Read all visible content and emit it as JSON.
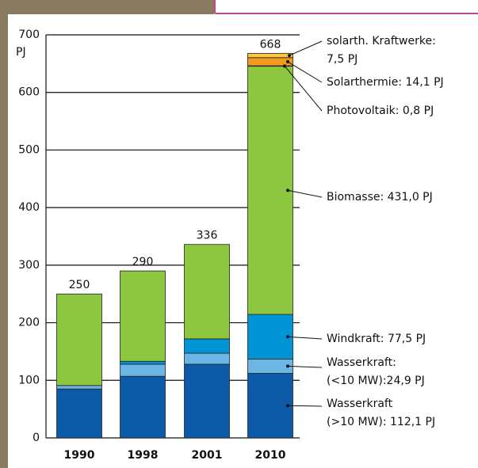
{
  "chart_data": {
    "type": "stacked-bar",
    "y_label": "PJ",
    "categories": [
      "1990",
      "1998",
      "2001",
      "2010"
    ],
    "totals": [
      250,
      290,
      336,
      668
    ],
    "ylim": [
      0,
      700
    ],
    "yticks": [
      0,
      100,
      200,
      300,
      400,
      500,
      600,
      700
    ],
    "grid": true,
    "series": [
      {
        "label": [
          "Wasserkraft",
          "(>10 MW): 112,1 PJ"
        ],
        "color": "#0b5ba8",
        "values": [
          85,
          107,
          128,
          112.1
        ]
      },
      {
        "label": [
          "Wasserkraft:",
          "(<10 MW):24,9 PJ"
        ],
        "color": "#6cb6e6",
        "values": [
          6,
          21,
          19,
          24.9
        ]
      },
      {
        "label": [
          "Windkraft: 77,5 PJ"
        ],
        "color": "#0096d6",
        "values": [
          0,
          5,
          25,
          77.5
        ]
      },
      {
        "label": [
          "Biomasse: 431,0 PJ"
        ],
        "color": "#8dc63f",
        "values": [
          159,
          157,
          164,
          431.0
        ]
      },
      {
        "label": [
          "Photovoltaik: 0,8 PJ"
        ],
        "color": "#2a2a2a",
        "values": [
          0,
          0,
          0,
          0.8
        ]
      },
      {
        "label": [
          "Solarthermie: 14,1 PJ"
        ],
        "color": "#f39a1e",
        "values": [
          0,
          0,
          0,
          14.1
        ]
      },
      {
        "label": [
          "solarth. Kraftwerke:",
          "7,5 PJ"
        ],
        "color": "#f8c73c",
        "values": [
          0,
          0,
          0,
          7.5
        ]
      }
    ]
  }
}
